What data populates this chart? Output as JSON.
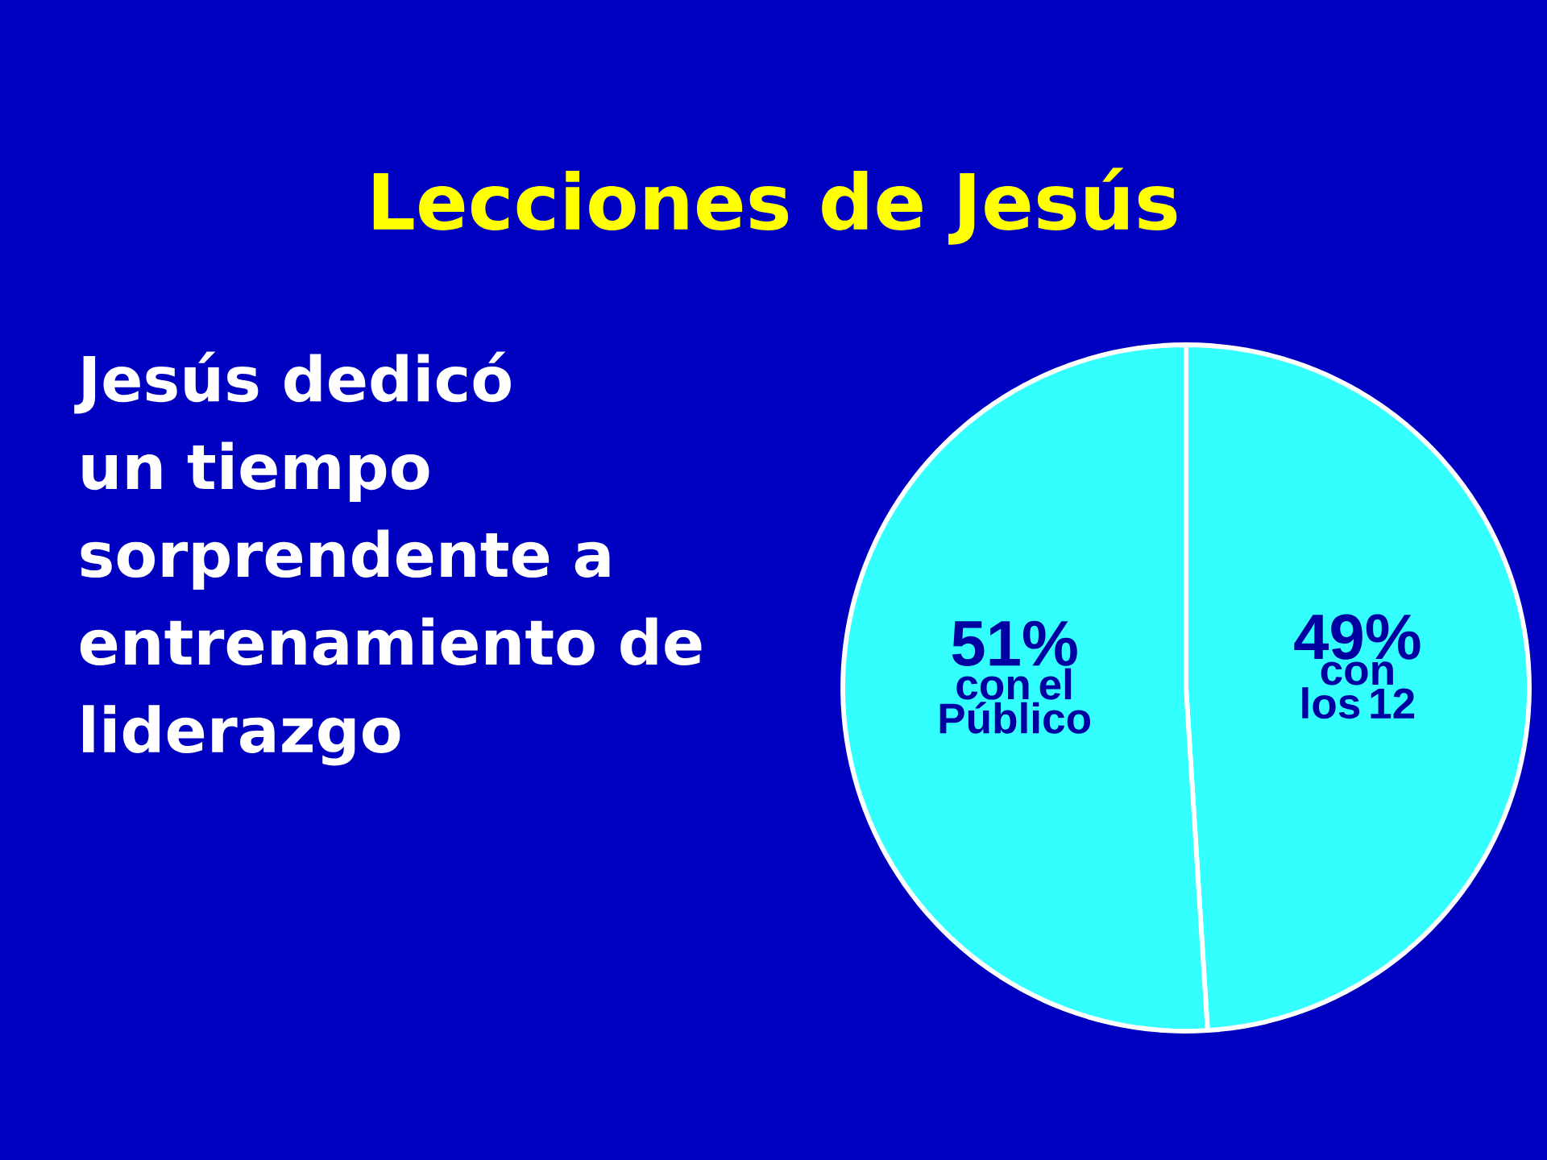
{
  "chart_data": {
    "type": "pie",
    "title": "Lecciones de Jesús",
    "categories": [
      "con los 12",
      "con el Público"
    ],
    "values": [
      49,
      51
    ],
    "value_labels": [
      "49%",
      "51%"
    ],
    "colors": [
      "#33ffff",
      "#33ffff"
    ],
    "annotations": [
      "Jesús dedicó un tiempo sorprendente a entrenamiento de liderazgo"
    ]
  }
}
